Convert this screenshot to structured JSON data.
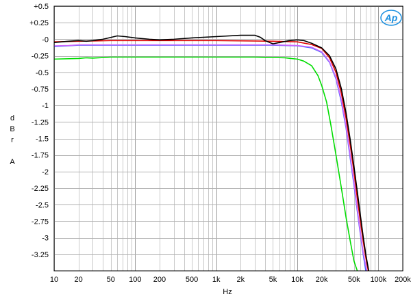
{
  "chart_data": {
    "type": "line",
    "title": "",
    "xlabel": "Hz",
    "ylabel_lines": [
      "d",
      "B",
      "r",
      "",
      "A"
    ],
    "x_scale": "log",
    "xlim": [
      10,
      200000
    ],
    "ylim": [
      -3.5,
      0.5
    ],
    "x_ticks": [
      {
        "value": 10,
        "label": "10"
      },
      {
        "value": 20,
        "label": "20"
      },
      {
        "value": 50,
        "label": "50"
      },
      {
        "value": 100,
        "label": "100"
      },
      {
        "value": 200,
        "label": "200"
      },
      {
        "value": 500,
        "label": "500"
      },
      {
        "value": 1000,
        "label": "1k"
      },
      {
        "value": 2000,
        "label": "2k"
      },
      {
        "value": 5000,
        "label": "5k"
      },
      {
        "value": 10000,
        "label": "10k"
      },
      {
        "value": 20000,
        "label": "20k"
      },
      {
        "value": 50000,
        "label": "50k"
      },
      {
        "value": 100000,
        "label": "100k"
      },
      {
        "value": 200000,
        "label": "200k"
      }
    ],
    "y_ticks": [
      {
        "value": 0.5,
        "label": "+0.5"
      },
      {
        "value": 0.25,
        "label": "+0.25"
      },
      {
        "value": 0,
        "label": "-0"
      },
      {
        "value": -0.25,
        "label": "-0.25"
      },
      {
        "value": -0.5,
        "label": "-0.5"
      },
      {
        "value": -0.75,
        "label": "-0.75"
      },
      {
        "value": -1,
        "label": "-1"
      },
      {
        "value": -1.25,
        "label": "-1.25"
      },
      {
        "value": -1.5,
        "label": "-1.5"
      },
      {
        "value": -1.75,
        "label": "-1.75"
      },
      {
        "value": -2,
        "label": "-2"
      },
      {
        "value": -2.25,
        "label": "-2.25"
      },
      {
        "value": -2.5,
        "label": "-2.5"
      },
      {
        "value": -2.75,
        "label": "-2.75"
      },
      {
        "value": -3,
        "label": "-3"
      },
      {
        "value": -3.25,
        "label": "-3.25"
      }
    ],
    "grid": true,
    "logo_text": "Ap",
    "series": [
      {
        "color": "#00dd00",
        "points": [
          [
            10,
            -0.3
          ],
          [
            20,
            -0.29
          ],
          [
            25,
            -0.28
          ],
          [
            30,
            -0.285
          ],
          [
            50,
            -0.27
          ],
          [
            100,
            -0.27
          ],
          [
            500,
            -0.27
          ],
          [
            1000,
            -0.27
          ],
          [
            3000,
            -0.27
          ],
          [
            5000,
            -0.275
          ],
          [
            7000,
            -0.28
          ],
          [
            10000,
            -0.3
          ],
          [
            12000,
            -0.33
          ],
          [
            15000,
            -0.4
          ],
          [
            18000,
            -0.55
          ],
          [
            20000,
            -0.7
          ],
          [
            23000,
            -0.95
          ],
          [
            26000,
            -1.3
          ],
          [
            30000,
            -1.75
          ],
          [
            35000,
            -2.25
          ],
          [
            40000,
            -2.7
          ],
          [
            45000,
            -3.05
          ],
          [
            50000,
            -3.35
          ],
          [
            55000,
            -3.5
          ]
        ]
      },
      {
        "color": "#4466ff",
        "points": [
          [
            10,
            -0.11
          ],
          [
            15,
            -0.1
          ],
          [
            20,
            -0.09
          ],
          [
            50,
            -0.09
          ],
          [
            100,
            -0.09
          ],
          [
            1000,
            -0.09
          ],
          [
            5000,
            -0.09
          ],
          [
            10000,
            -0.1
          ],
          [
            15000,
            -0.13
          ],
          [
            20000,
            -0.2
          ],
          [
            25000,
            -0.35
          ],
          [
            30000,
            -0.6
          ],
          [
            35000,
            -0.95
          ],
          [
            40000,
            -1.35
          ],
          [
            45000,
            -1.8
          ],
          [
            50000,
            -2.2
          ],
          [
            55000,
            -2.6
          ],
          [
            60000,
            -2.95
          ],
          [
            65000,
            -3.25
          ],
          [
            70000,
            -3.5
          ]
        ]
      },
      {
        "color": "#cc66ff",
        "points": [
          [
            10,
            -0.1
          ],
          [
            15,
            -0.095
          ],
          [
            20,
            -0.085
          ],
          [
            50,
            -0.085
          ],
          [
            100,
            -0.085
          ],
          [
            1000,
            -0.085
          ],
          [
            5000,
            -0.085
          ],
          [
            10000,
            -0.095
          ],
          [
            15000,
            -0.12
          ],
          [
            20000,
            -0.19
          ],
          [
            25000,
            -0.34
          ],
          [
            30000,
            -0.58
          ],
          [
            35000,
            -0.92
          ],
          [
            40000,
            -1.32
          ],
          [
            45000,
            -1.76
          ],
          [
            50000,
            -2.16
          ],
          [
            55000,
            -2.56
          ],
          [
            60000,
            -2.92
          ],
          [
            65000,
            -3.22
          ],
          [
            72000,
            -3.5
          ]
        ]
      },
      {
        "color": "#dd0000",
        "points": [
          [
            10,
            -0.04
          ],
          [
            20,
            -0.03
          ],
          [
            50,
            -0.02
          ],
          [
            100,
            -0.02
          ],
          [
            1000,
            -0.02
          ],
          [
            5000,
            -0.03
          ],
          [
            10000,
            -0.04
          ],
          [
            15000,
            -0.08
          ],
          [
            20000,
            -0.14
          ],
          [
            25000,
            -0.28
          ],
          [
            30000,
            -0.5
          ],
          [
            35000,
            -0.82
          ],
          [
            40000,
            -1.2
          ],
          [
            45000,
            -1.6
          ],
          [
            50000,
            -2.0
          ],
          [
            55000,
            -2.4
          ],
          [
            60000,
            -2.75
          ],
          [
            65000,
            -3.05
          ],
          [
            70000,
            -3.3
          ],
          [
            75000,
            -3.5
          ]
        ]
      },
      {
        "color": "#000000",
        "points": [
          [
            10,
            -0.05
          ],
          [
            15,
            -0.03
          ],
          [
            20,
            -0.02
          ],
          [
            25,
            -0.03
          ],
          [
            30,
            -0.02
          ],
          [
            40,
            0.0
          ],
          [
            60,
            0.05
          ],
          [
            75,
            0.04
          ],
          [
            100,
            0.02
          ],
          [
            150,
            0.0
          ],
          [
            200,
            -0.01
          ],
          [
            300,
            0.0
          ],
          [
            500,
            0.02
          ],
          [
            1000,
            0.04
          ],
          [
            2000,
            0.06
          ],
          [
            3000,
            0.06
          ],
          [
            3500,
            0.03
          ],
          [
            4000,
            -0.02
          ],
          [
            5000,
            -0.07
          ],
          [
            6000,
            -0.05
          ],
          [
            8000,
            -0.02
          ],
          [
            10000,
            -0.01
          ],
          [
            12000,
            -0.02
          ],
          [
            15000,
            -0.06
          ],
          [
            20000,
            -0.13
          ],
          [
            25000,
            -0.25
          ],
          [
            30000,
            -0.45
          ],
          [
            35000,
            -0.75
          ],
          [
            40000,
            -1.12
          ],
          [
            45000,
            -1.52
          ],
          [
            50000,
            -1.92
          ],
          [
            55000,
            -2.3
          ],
          [
            60000,
            -2.66
          ],
          [
            65000,
            -2.98
          ],
          [
            70000,
            -3.25
          ],
          [
            76000,
            -3.5
          ]
        ]
      }
    ]
  }
}
